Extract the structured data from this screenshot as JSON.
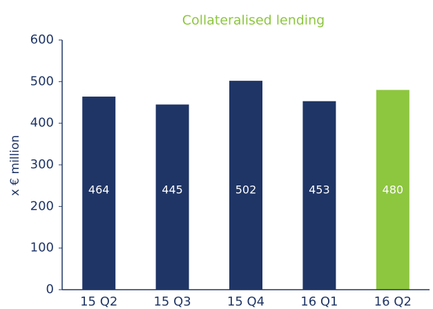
{
  "chart_data": {
    "type": "bar",
    "title": "Collateralised lending",
    "ylabel": "x € million",
    "categories": [
      "15 Q2",
      "15 Q3",
      "15 Q4",
      "16 Q1",
      "16 Q2"
    ],
    "values": [
      464,
      445,
      502,
      453,
      480
    ],
    "colors": [
      "#1f3566",
      "#1f3566",
      "#1f3566",
      "#1f3566",
      "#8dc63f"
    ],
    "ylim": [
      0,
      600
    ],
    "yticks": [
      0,
      100,
      200,
      300,
      400,
      500,
      600
    ],
    "grid": false
  }
}
